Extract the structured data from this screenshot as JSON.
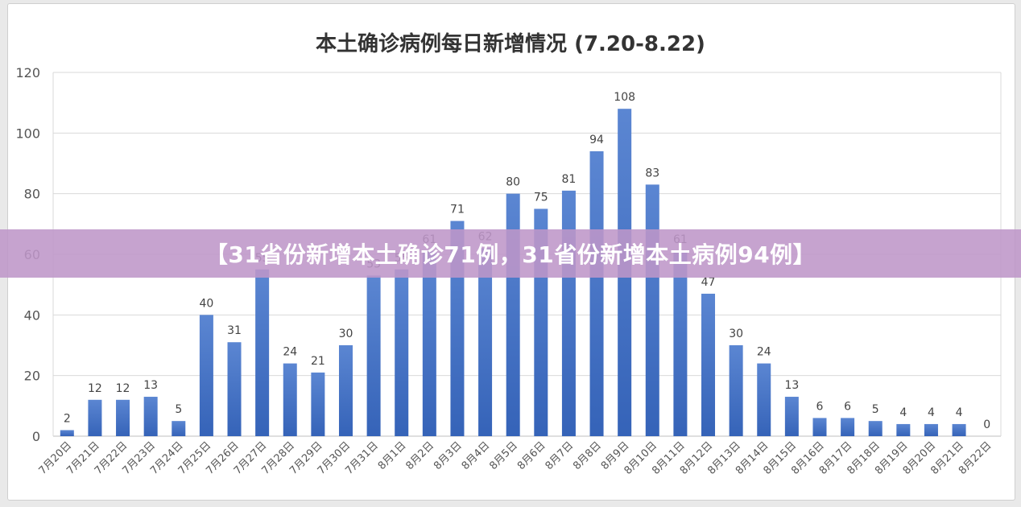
{
  "banner": {
    "text": "【31省份新增本土确诊71例，31省份新增本土病例94例】"
  },
  "chart_data": {
    "type": "bar",
    "title": "本土确诊病例每日新增情况 (7.20-8.22)",
    "xlabel": "",
    "ylabel": "",
    "ylim": [
      0,
      120
    ],
    "yticks": [
      0,
      20,
      40,
      60,
      80,
      100,
      120
    ],
    "grid": "horizontal",
    "legend": "none",
    "bar_color": "#4472c4",
    "categories": [
      "7月20日",
      "7月21日",
      "7月22日",
      "7月23日",
      "7月24日",
      "7月25日",
      "7月26日",
      "7月27日",
      "7月28日",
      "7月29日",
      "7月30日",
      "7月31日",
      "8月1日",
      "8月2日",
      "8月3日",
      "8月4日",
      "8月5日",
      "8月6日",
      "8月7日",
      "8月8日",
      "8月9日",
      "8月10日",
      "8月11日",
      "8月12日",
      "8月13日",
      "8月14日",
      "8月15日",
      "8月16日",
      "8月17日",
      "8月18日",
      "8月19日",
      "8月20日",
      "8月21日",
      "8月22日"
    ],
    "values": [
      2,
      12,
      12,
      13,
      5,
      40,
      31,
      55,
      24,
      21,
      30,
      53,
      55,
      61,
      71,
      62,
      80,
      75,
      81,
      94,
      108,
      83,
      61,
      47,
      30,
      24,
      13,
      6,
      6,
      5,
      4,
      4,
      4,
      0
    ]
  }
}
